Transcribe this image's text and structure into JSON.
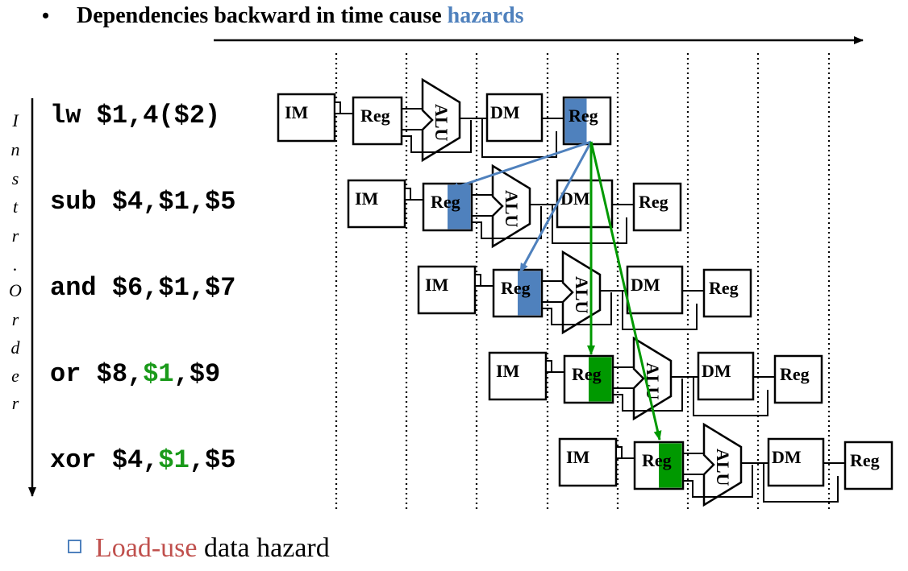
{
  "heading": {
    "bullet": "•",
    "text": "Dependencies backward in time cause ",
    "highlight": "hazards",
    "highlight_color": "#4f81bd"
  },
  "axis_label": {
    "chars": [
      "I",
      "n",
      "s",
      "t",
      "r",
      ".",
      "O",
      "r",
      "d",
      "e",
      "r"
    ]
  },
  "instructions": [
    {
      "op": "lw  ",
      "segments": [
        {
          "t": "$1,4($2)",
          "c": "#000000"
        }
      ]
    },
    {
      "op": "sub ",
      "segments": [
        {
          "t": "$4,$1,$5",
          "c": "#000000"
        }
      ]
    },
    {
      "op": "and ",
      "segments": [
        {
          "t": "$6,$1,$7",
          "c": "#000000"
        }
      ]
    },
    {
      "op": "or  ",
      "segments": [
        {
          "t": "$8,",
          "c": "#000000"
        },
        {
          "t": "$1",
          "c": "#1a9a1a"
        },
        {
          "t": ",$9",
          "c": "#000000"
        }
      ]
    },
    {
      "op": "xor ",
      "segments": [
        {
          "t": "$4,",
          "c": "#000000"
        },
        {
          "t": "$1",
          "c": "#1a9a1a"
        },
        {
          "t": ",$5",
          "c": "#000000"
        }
      ]
    }
  ],
  "stage_labels": {
    "im": "IM",
    "reg": "Reg",
    "alu": "ALU",
    "dm": "DM"
  },
  "colors": {
    "blue": "#4f81bd",
    "green": "#009900",
    "black": "#000000",
    "red": "#c0504d"
  },
  "footer": {
    "box_icon": "checkbox-icon",
    "red_text": "Load-use",
    "text": " data hazard"
  }
}
